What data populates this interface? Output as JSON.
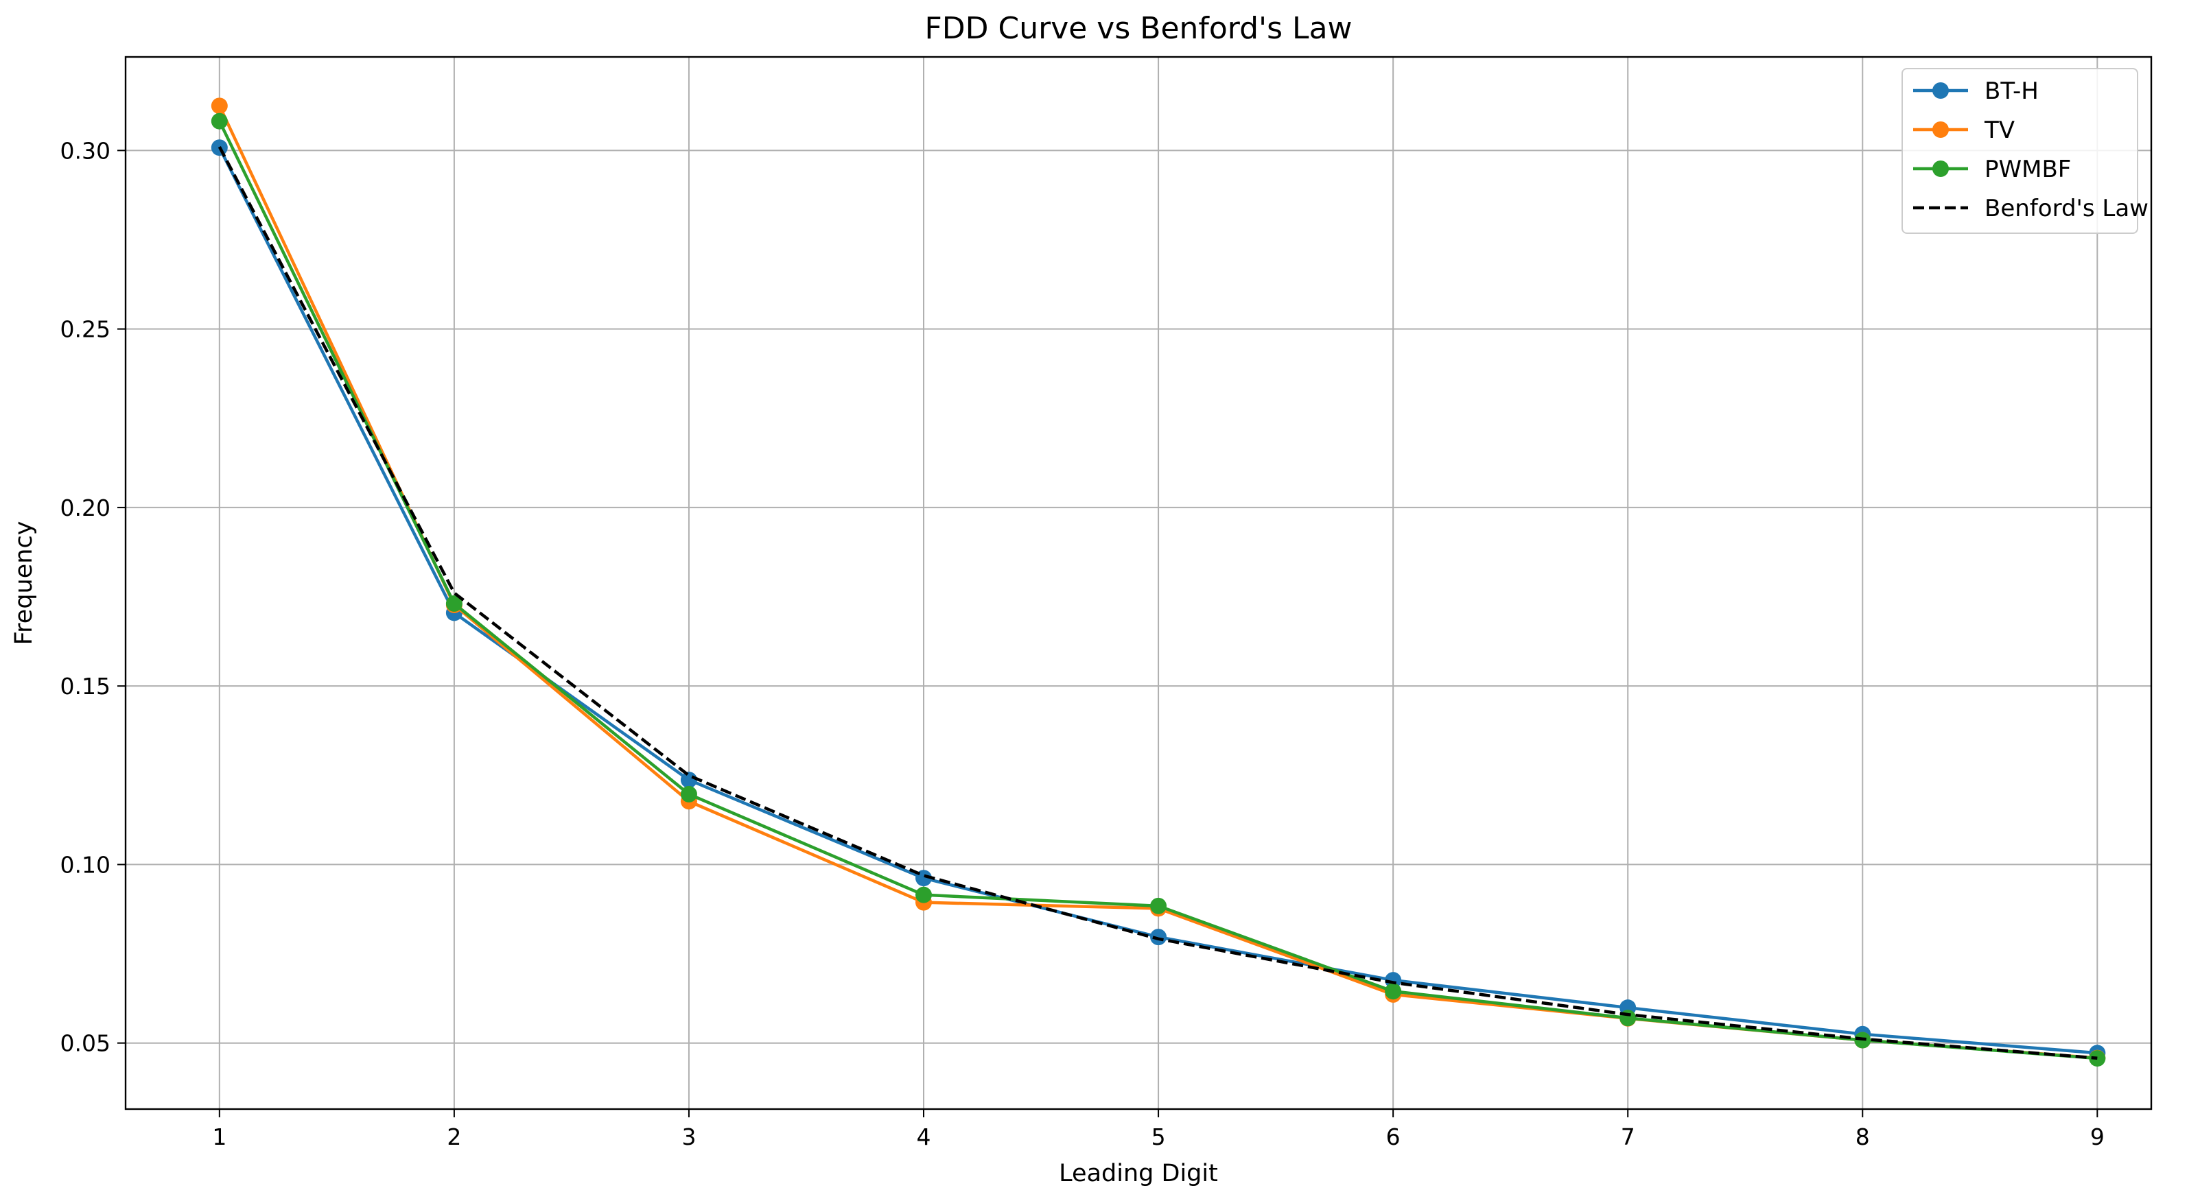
{
  "chart_data": {
    "type": "line",
    "title": "FDD Curve vs Benford's Law",
    "xlabel": "Leading Digit",
    "ylabel": "Frequency",
    "x": [
      1,
      2,
      3,
      4,
      5,
      6,
      7,
      8,
      9
    ],
    "xticks": [
      "1",
      "2",
      "3",
      "4",
      "5",
      "6",
      "7",
      "8",
      "9"
    ],
    "yticks": [
      "0.05",
      "0.10",
      "0.15",
      "0.20",
      "0.25",
      "0.30"
    ],
    "xlim": [
      0.6,
      9.23
    ],
    "ylim": [
      0.0315,
      0.3262
    ],
    "grid": true,
    "legend_position": "top-right",
    "series": [
      {
        "name": "BT-H",
        "color": "#1f77b4",
        "style": "solid",
        "marker": "circle",
        "values": [
          0.3008,
          0.1705,
          0.1237,
          0.0962,
          0.0797,
          0.0676,
          0.0599,
          0.0525,
          0.0472
        ]
      },
      {
        "name": "TV",
        "color": "#ff7f0e",
        "style": "solid",
        "marker": "circle",
        "values": [
          0.3125,
          0.1727,
          0.1177,
          0.0894,
          0.0877,
          0.0636,
          0.0569,
          0.0508,
          0.0458
        ]
      },
      {
        "name": "PWMBF",
        "color": "#2ca02c",
        "style": "solid",
        "marker": "circle",
        "values": [
          0.3082,
          0.1731,
          0.1197,
          0.0915,
          0.0884,
          0.0645,
          0.057,
          0.0508,
          0.0457
        ]
      },
      {
        "name": "Benford's Law",
        "color": "#000000",
        "style": "dashed",
        "marker": "none",
        "values": [
          0.30103,
          0.17609,
          0.12494,
          0.09691,
          0.07918,
          0.06695,
          0.05799,
          0.05115,
          0.04576
        ]
      }
    ]
  }
}
